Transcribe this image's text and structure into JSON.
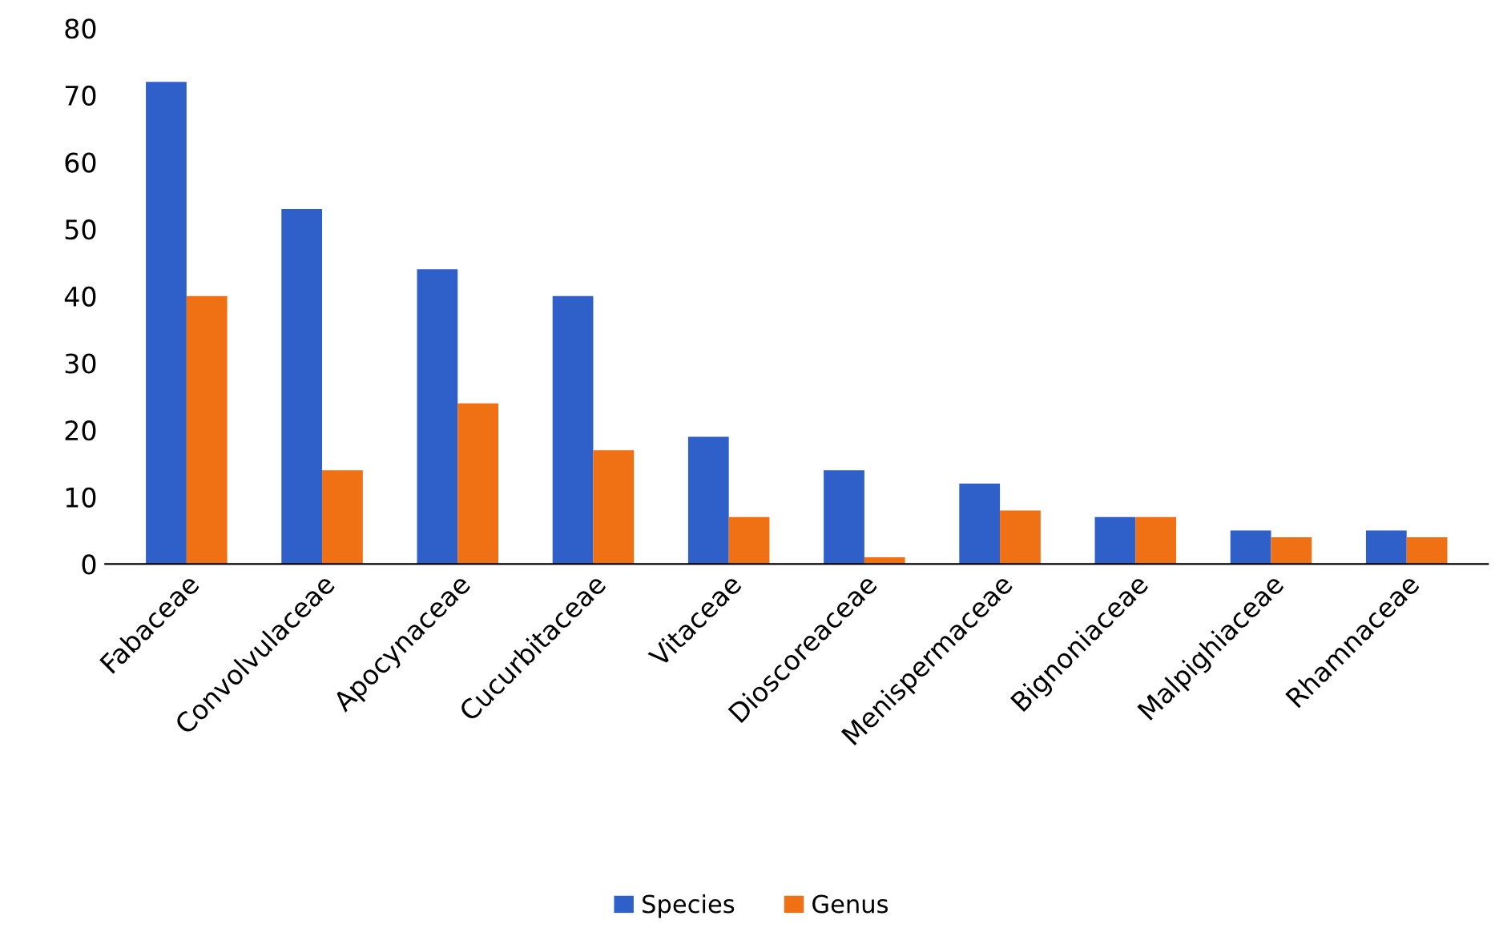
{
  "chart_data": {
    "type": "bar",
    "categories": [
      "Fabaceae",
      "Convolvulaceae",
      "Apocynaceae",
      "Cucurbitaceae",
      "Vitaceae",
      "Dioscoreaceae",
      "Menispermaceae",
      "Bignoniaceae",
      "Malpighiaceae",
      "Rhamnaceae"
    ],
    "series": [
      {
        "name": "Species",
        "color": "#2f5fc8",
        "values": [
          72,
          53,
          44,
          40,
          19,
          14,
          12,
          7,
          5,
          5
        ]
      },
      {
        "name": "Genus",
        "color": "#f07014",
        "values": [
          40,
          14,
          24,
          17,
          7,
          1,
          8,
          7,
          4,
          4
        ]
      }
    ],
    "ylim": [
      0,
      80
    ],
    "yticks": [
      0,
      10,
      20,
      30,
      40,
      50,
      60,
      70,
      80
    ],
    "grid": false,
    "legend": "bottom"
  }
}
